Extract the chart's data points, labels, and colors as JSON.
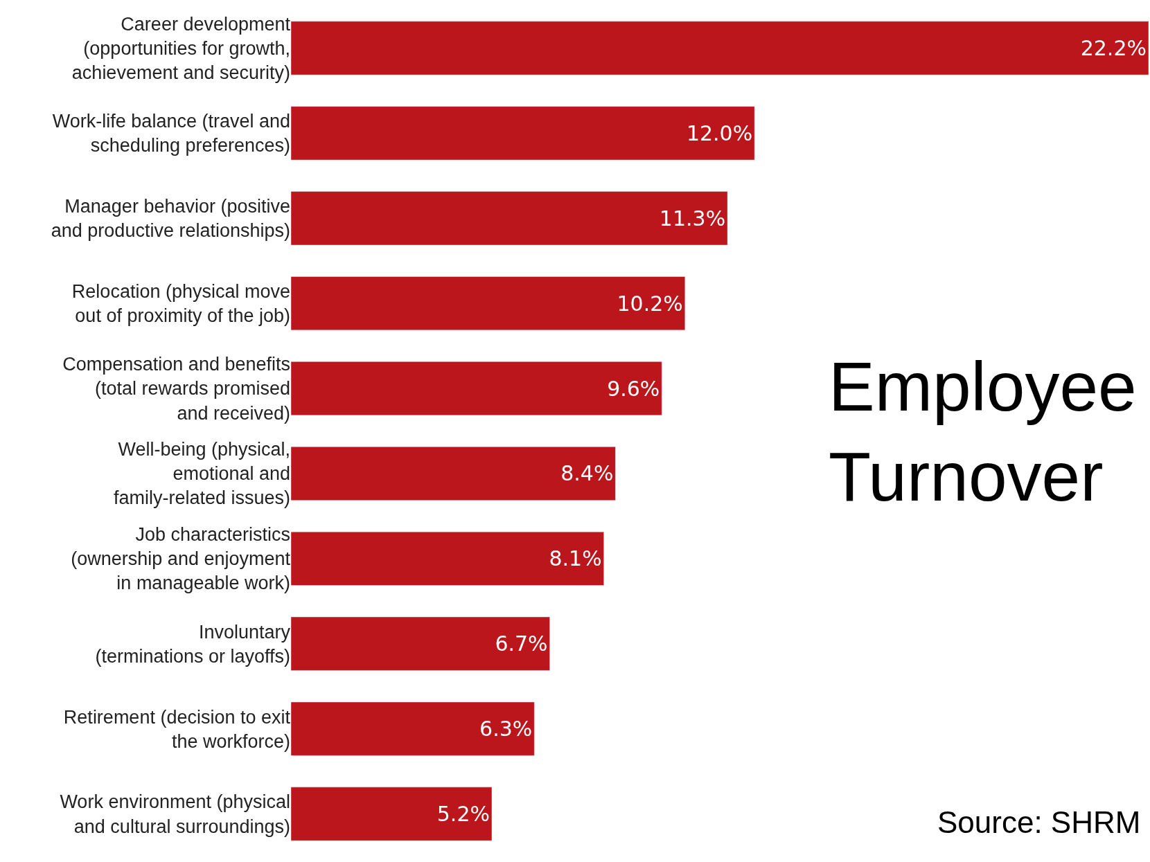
{
  "chart_data": {
    "type": "bar",
    "orientation": "horizontal",
    "title": "Employee\nTurnover",
    "categories": [
      "Career development\n(opportunities for growth,\nachievement and security)",
      "Work-life balance (travel and\nscheduling preferences)",
      "Manager behavior (positive\nand productive relationships)",
      "Relocation (physical move\nout of proximity of the job)",
      "Compensation and benefits\n(total rewards promised\nand received)",
      "Well-being (physical,\nemotional and\nfamily-related issues)",
      "Job characteristics\n(ownership and enjoyment\nin manageable work)",
      "Involuntary\n(terminations or layoffs)",
      "Retirement (decision to exit\nthe workforce)",
      "Work environment (physical\nand cultural surroundings)"
    ],
    "values": [
      22.2,
      12.0,
      11.3,
      10.2,
      9.6,
      8.4,
      8.1,
      6.7,
      6.3,
      5.2
    ],
    "value_labels": [
      "22.2%",
      "12.0%",
      "11.3%",
      "10.2%",
      "9.6%",
      "8.4%",
      "8.1%",
      "6.7%",
      "6.3%",
      "5.2%"
    ],
    "color": "#bb161b",
    "annotations": [
      "Source: SHRM"
    ]
  }
}
